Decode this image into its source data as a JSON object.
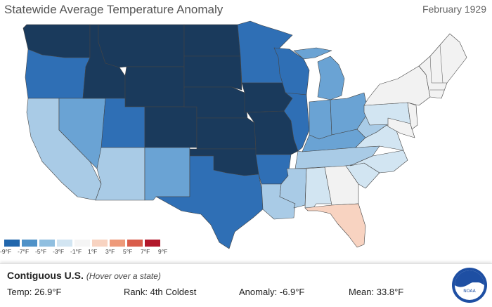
{
  "header": {
    "title": "Statewide Average Temperature Anomaly",
    "period": "February 1929"
  },
  "legend": {
    "colors": [
      "#2166ac",
      "#4f92c8",
      "#90bfe0",
      "#d2e5f2",
      "#f5f5f5",
      "#f8d3c1",
      "#ee9a7a",
      "#d95d4b",
      "#b2182b"
    ],
    "ticks": [
      "-9°F",
      "-7°F",
      "-5°F",
      "-3°F",
      "-1°F",
      "1°F",
      "3°F",
      "5°F",
      "7°F",
      "9°F"
    ]
  },
  "states": [
    {
      "id": "WA",
      "color": "#1a3a5c"
    },
    {
      "id": "OR",
      "color": "#2f6fb5"
    },
    {
      "id": "CA",
      "color": "#a9cbe6"
    },
    {
      "id": "NV",
      "color": "#6aa3d4"
    },
    {
      "id": "ID",
      "color": "#1a3a5c"
    },
    {
      "id": "MT",
      "color": "#1a3a5c"
    },
    {
      "id": "WY",
      "color": "#1a3a5c"
    },
    {
      "id": "UT",
      "color": "#2f6fb5"
    },
    {
      "id": "AZ",
      "color": "#a9cbe6"
    },
    {
      "id": "CO",
      "color": "#1a3a5c"
    },
    {
      "id": "NM",
      "color": "#6aa3d4"
    },
    {
      "id": "ND",
      "color": "#1a3a5c"
    },
    {
      "id": "SD",
      "color": "#1a3a5c"
    },
    {
      "id": "NE",
      "color": "#1a3a5c"
    },
    {
      "id": "KS",
      "color": "#1a3a5c"
    },
    {
      "id": "OK",
      "color": "#1a3a5c"
    },
    {
      "id": "TX",
      "color": "#2f6fb5"
    },
    {
      "id": "MN",
      "color": "#2f6fb5"
    },
    {
      "id": "IA",
      "color": "#1a3a5c"
    },
    {
      "id": "MO",
      "color": "#1a3a5c"
    },
    {
      "id": "AR",
      "color": "#2f6fb5"
    },
    {
      "id": "LA",
      "color": "#a9cbe6"
    },
    {
      "id": "WI",
      "color": "#2f6fb5"
    },
    {
      "id": "IL",
      "color": "#2f6fb5"
    },
    {
      "id": "MI",
      "color": "#6aa3d4"
    },
    {
      "id": "IN",
      "color": "#6aa3d4"
    },
    {
      "id": "OH",
      "color": "#6aa3d4"
    },
    {
      "id": "KY",
      "color": "#6aa3d4"
    },
    {
      "id": "TN",
      "color": "#a9cbe6"
    },
    {
      "id": "MS",
      "color": "#a9cbe6"
    },
    {
      "id": "AL",
      "color": "#d2e5f2"
    },
    {
      "id": "GA",
      "color": "#f2f2f2"
    },
    {
      "id": "FL",
      "color": "#f8d3c1"
    },
    {
      "id": "SC",
      "color": "#d2e5f2"
    },
    {
      "id": "NC",
      "color": "#d2e5f2"
    },
    {
      "id": "VA",
      "color": "#d2e5f2"
    },
    {
      "id": "WV",
      "color": "#a9cbe6"
    },
    {
      "id": "PA",
      "color": "#d2e5f2"
    },
    {
      "id": "NY",
      "color": "#f2f2f2"
    },
    {
      "id": "MD",
      "color": "#f2f2f2"
    },
    {
      "id": "NJ",
      "color": "#f2f2f2"
    },
    {
      "id": "NE_STATES",
      "color": "#f2f2f2"
    }
  ],
  "info": {
    "region": "Contiguous U.S.",
    "region_note": "(Hover over a state)",
    "temp_label": "Temp:",
    "temp_value": "26.9°F",
    "rank_label": "Rank:",
    "rank_value": "4th Coldest",
    "anomaly_label": "Anomaly:",
    "anomaly_value": "-6.9°F",
    "mean_label": "Mean:",
    "mean_value": "33.8°F"
  }
}
